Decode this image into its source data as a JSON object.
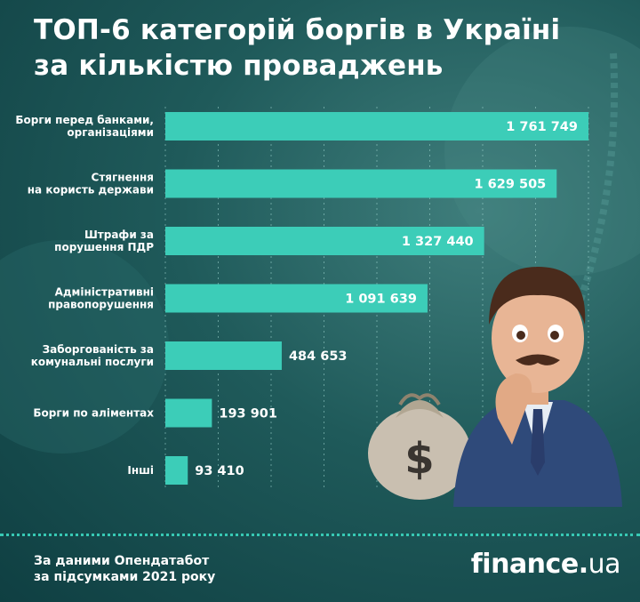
{
  "title": {
    "line1": "ТОП-6 категорій боргів в Україні",
    "line2": "за кількістю проваджень"
  },
  "chart_data": {
    "type": "bar",
    "orientation": "horizontal",
    "categories": [
      [
        "Борги перед банками,",
        "організаціями"
      ],
      [
        "Стягнення",
        "на користь держави"
      ],
      [
        "Штрафи за",
        "порушення ПДР"
      ],
      [
        "Адміністративні",
        "правопорушення"
      ],
      [
        "Заборгованість за",
        "комунальні послуги"
      ],
      [
        "Борги по аліментах"
      ],
      [
        "Інші"
      ]
    ],
    "values": [
      1761749,
      1629505,
      1327440,
      1091639,
      484653,
      193901,
      93410
    ],
    "value_labels": [
      "1 761 749",
      "1 629 505",
      "1 327 440",
      "1 091 639",
      "484 653",
      "193 901",
      "93 410"
    ],
    "xlim": [
      0,
      1761749
    ],
    "grid": true,
    "colors": {
      "bar": "#3ccdb8",
      "bar_label_inside": "#ffffff",
      "bar_label_outside": "#ffffff",
      "gridline": "#9fd6d0"
    }
  },
  "source": {
    "line1": "За даними Опендатабот",
    "line2": "за підсумками 2021 року"
  },
  "logo": {
    "name": "finance",
    "dot": ".",
    "suffix": "ua"
  }
}
